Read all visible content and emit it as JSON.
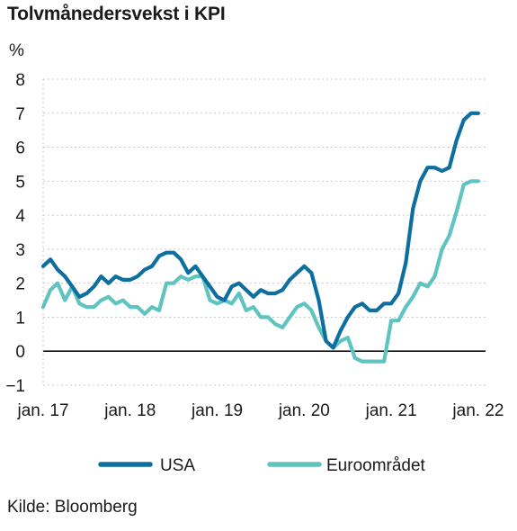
{
  "title": "Tolvmånedersvekst i KPI",
  "source": "Kilde: Bloomberg",
  "chart_data": {
    "type": "line",
    "ylabel": "%",
    "ylim": [
      -1,
      8
    ],
    "yticks": [
      -1,
      0,
      1,
      2,
      3,
      4,
      5,
      6,
      7,
      8
    ],
    "xlim": [
      "2017-01",
      "2022-02"
    ],
    "xticks": [
      {
        "label": "jan. 17",
        "x": "2017-01"
      },
      {
        "label": "jan. 18",
        "x": "2018-01"
      },
      {
        "label": "jan. 19",
        "x": "2019-01"
      },
      {
        "label": "jan. 20",
        "x": "2020-01"
      },
      {
        "label": "jan. 21",
        "x": "2021-01"
      },
      {
        "label": "jan. 22",
        "x": "2022-01"
      }
    ],
    "grid": true,
    "legend": "bottom",
    "x": [
      "2017-01",
      "2017-02",
      "2017-03",
      "2017-04",
      "2017-05",
      "2017-06",
      "2017-07",
      "2017-08",
      "2017-09",
      "2017-10",
      "2017-11",
      "2017-12",
      "2018-01",
      "2018-02",
      "2018-03",
      "2018-04",
      "2018-05",
      "2018-06",
      "2018-07",
      "2018-08",
      "2018-09",
      "2018-10",
      "2018-11",
      "2018-12",
      "2019-01",
      "2019-02",
      "2019-03",
      "2019-04",
      "2019-05",
      "2019-06",
      "2019-07",
      "2019-08",
      "2019-09",
      "2019-10",
      "2019-11",
      "2019-12",
      "2020-01",
      "2020-02",
      "2020-03",
      "2020-04",
      "2020-05",
      "2020-06",
      "2020-07",
      "2020-08",
      "2020-09",
      "2020-10",
      "2020-11",
      "2020-12",
      "2021-01",
      "2021-02",
      "2021-03",
      "2021-04",
      "2021-05",
      "2021-06",
      "2021-07",
      "2021-08",
      "2021-09",
      "2021-10",
      "2021-11",
      "2021-12",
      "2022-01"
    ],
    "series": [
      {
        "name": "USA",
        "color": "#0d6fa0",
        "values": [
          2.5,
          2.7,
          2.4,
          2.2,
          1.9,
          1.6,
          1.7,
          1.9,
          2.2,
          2.0,
          2.2,
          2.1,
          2.1,
          2.2,
          2.4,
          2.5,
          2.8,
          2.9,
          2.9,
          2.7,
          2.3,
          2.5,
          2.2,
          1.9,
          1.6,
          1.5,
          1.9,
          2.0,
          1.8,
          1.6,
          1.8,
          1.7,
          1.7,
          1.8,
          2.1,
          2.3,
          2.5,
          2.3,
          1.5,
          0.3,
          0.1,
          0.6,
          1.0,
          1.3,
          1.4,
          1.2,
          1.2,
          1.4,
          1.4,
          1.7,
          2.6,
          4.2,
          5.0,
          5.4,
          5.4,
          5.3,
          5.4,
          6.2,
          6.8,
          7.0,
          7.0
        ]
      },
      {
        "name": "Euroområdet",
        "color": "#5fc4c0",
        "values": [
          1.3,
          1.8,
          2.0,
          1.5,
          1.9,
          1.4,
          1.3,
          1.3,
          1.5,
          1.6,
          1.4,
          1.5,
          1.3,
          1.3,
          1.1,
          1.3,
          1.2,
          2.0,
          2.0,
          2.2,
          2.1,
          2.2,
          2.2,
          1.5,
          1.4,
          1.5,
          1.4,
          1.7,
          1.2,
          1.3,
          1.0,
          1.0,
          0.8,
          0.7,
          1.0,
          1.3,
          1.4,
          1.2,
          0.7,
          0.3,
          0.1,
          0.3,
          0.4,
          -0.2,
          -0.3,
          -0.3,
          -0.3,
          -0.3,
          0.9,
          0.9,
          1.3,
          1.6,
          2.0,
          1.9,
          2.2,
          3.0,
          3.4,
          4.1,
          4.9,
          5.0,
          5.0
        ]
      }
    ]
  }
}
